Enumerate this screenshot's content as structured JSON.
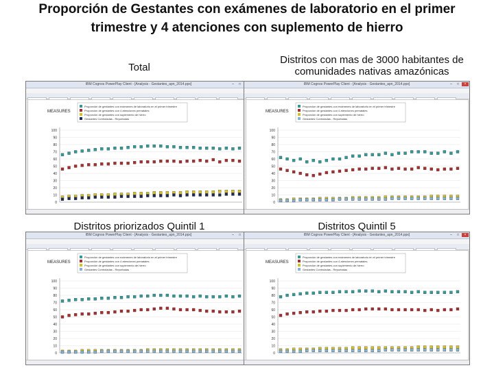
{
  "title": {
    "line1": "Proporción de Gestantes con exámenes de laboratorio en el primer",
    "line2": "trimestre y 4 atenciones con suplemento de hierro"
  },
  "panels": [
    {
      "caption_line1": "Total",
      "caption_line2": "",
      "window_title": "IBM Cognos PowerPlay Client - [Analysis - Gestantes_apn_2014.ppx]",
      "menu": [
        "Archivo",
        "Edición",
        "Ver",
        "Insertar",
        "Formato",
        "Explorar",
        "Herramientas",
        "Ventana",
        "Ayuda"
      ],
      "status": "Listo - Pantalla",
      "measure_label": "MEASURES",
      "y_ticks": [
        "100",
        "90",
        "80",
        "70",
        "60",
        "50",
        "40",
        "30",
        "20",
        "10",
        "0"
      ],
      "legend": [
        "Proporción de gestantes con exámenes de laboratorio en el primer trimestre",
        "Proporción de gestantes con 4 atenciones prenatales",
        "Proporción de gestantes con suplemento de hierro",
        "Gestantes Controladas - Reportadas"
      ],
      "colors": [
        "#2a9d9a",
        "#b02a2a",
        "#d8c21a",
        "#1f2a5a"
      ],
      "chart_data": {
        "type": "line",
        "ylim": [
          0,
          100
        ],
        "series": [
          {
            "name": "Proporción de gestantes con exámenes de laboratorio en el primer trimestre",
            "values": [
              66,
              68,
              70,
              71,
              72,
              73,
              74,
              74,
              75,
              75,
              76,
              77,
              77,
              78,
              78,
              78,
              77,
              77,
              76,
              76,
              76,
              75,
              75,
              75,
              74,
              75,
              74,
              75
            ]
          },
          {
            "name": "Proporción de gestantes con 4 atenciones prenatales",
            "values": [
              46,
              48,
              50,
              51,
              52,
              52,
              53,
              53,
              54,
              54,
              54,
              55,
              56,
              56,
              56,
              57,
              57,
              57,
              56,
              57,
              57,
              58,
              57,
              59,
              56,
              58,
              58,
              57
            ]
          },
          {
            "name": "Proporción de gestantes con suplemento de hierro",
            "values": [
              7,
              8,
              8,
              9,
              9,
              10,
              10,
              10,
              11,
              11,
              11,
              12,
              12,
              12,
              13,
              13,
              13,
              13,
              13,
              14,
              14,
              14,
              14,
              14,
              15,
              15,
              15,
              15
            ]
          },
          {
            "name": "Gestantes Controladas - Reportadas",
            "values": [
              4,
              5,
              5,
              6,
              6,
              7,
              7,
              7,
              7,
              8,
              8,
              8,
              8,
              9,
              9,
              9,
              9,
              10,
              9,
              10,
              10,
              10,
              10,
              10,
              10,
              11,
              11,
              11
            ]
          }
        ]
      }
    },
    {
      "caption_line1": "Distritos con mas de 3000 habitantes de",
      "caption_line2": "comunidades nativas amazónicas",
      "window_title": "IBM Cognos PowerPlay Client - [Analysis - Gestantes_apn_2014.ppx]",
      "menu": [
        "Archivo",
        "Edición",
        "Ver",
        "Insertar",
        "Formato",
        "Explorar",
        "Herramientas",
        "Ventana",
        "Ayuda"
      ],
      "status": "Listo - Pantalla",
      "measure_label": "MEASURES",
      "y_ticks": [
        "100",
        "90",
        "80",
        "70",
        "60",
        "50",
        "40",
        "30",
        "20",
        "10",
        "0"
      ],
      "legend": [
        "Proporción de gestantes con exámenes de laboratorio en el primer trimestre",
        "Proporción de gestantes con 4 atenciones prenatales",
        "Proporción de gestantes con suplemento de hierro",
        "Gestantes Controladas - Reportadas"
      ],
      "colors": [
        "#2a9d9a",
        "#b02a2a",
        "#d8c21a",
        "#7fb3d8"
      ],
      "chart_data": {
        "type": "line",
        "ylim": [
          0,
          100
        ],
        "series": [
          {
            "name": "Proporción de gestantes con exámenes de laboratorio en el primer trimestre",
            "values": [
              62,
              60,
              58,
              60,
              56,
              58,
              56,
              58,
              60,
              60,
              62,
              64,
              64,
              66,
              66,
              66,
              68,
              66,
              68,
              68,
              70,
              70,
              70,
              68,
              68,
              70,
              68,
              70
            ]
          },
          {
            "name": "Proporción de gestantes con 4 atenciones prenatales",
            "values": [
              46,
              44,
              42,
              40,
              38,
              37,
              39,
              41,
              42,
              43,
              44,
              45,
              46,
              46,
              47,
              47,
              48,
              46,
              47,
              46,
              46,
              48,
              47,
              46,
              45,
              46,
              46,
              47
            ]
          },
          {
            "name": "Proporción de gestantes con suplemento de hierro",
            "values": [
              3,
              3,
              4,
              4,
              4,
              4,
              5,
              5,
              5,
              5,
              5,
              6,
              6,
              6,
              6,
              6,
              7,
              7,
              7,
              7,
              7,
              7,
              7,
              8,
              8,
              8,
              8,
              8
            ]
          },
          {
            "name": "Gestantes Controladas - Reportadas",
            "values": [
              2,
              2,
              2,
              3,
              3,
              3,
              3,
              3,
              3,
              4,
              4,
              4,
              4,
              4,
              4,
              4,
              4,
              5,
              5,
              5,
              5,
              5,
              5,
              5,
              5,
              5,
              5,
              5
            ]
          }
        ]
      }
    },
    {
      "caption_line1": "Distritos priorizados Quintil 1",
      "caption_line2": "",
      "window_title": "IBM Cognos PowerPlay Client - [Analysis - Gestantes_apn_2014.ppx]",
      "menu": [
        "Archivo",
        "Edición",
        "Ver",
        "Insertar",
        "Formato",
        "Explorar",
        "Herramientas",
        "Ventana",
        "Ayuda"
      ],
      "status": "Listo - Pantalla",
      "measure_label": "MEASURES",
      "y_ticks": [
        "100",
        "90",
        "80",
        "70",
        "60",
        "50",
        "40",
        "30",
        "20",
        "10",
        "0"
      ],
      "legend": [
        "Proporción de gestantes con exámenes de laboratorio en el primer trimestre",
        "Proporción de gestantes con 4 atenciones prenatales",
        "Proporción de gestantes con suplemento de hierro",
        "Gestantes Controladas - Reportadas"
      ],
      "colors": [
        "#2a9d9a",
        "#b02a2a",
        "#d8c21a",
        "#7fb3d8"
      ],
      "chart_data": {
        "type": "line",
        "ylim": [
          0,
          100
        ],
        "series": [
          {
            "name": "Proporción de gestantes con exámenes de laboratorio en el primer trimestre",
            "values": [
              72,
              73,
              74,
              74,
              75,
              75,
              76,
              76,
              77,
              77,
              78,
              78,
              79,
              79,
              80,
              80,
              80,
              79,
              79,
              79,
              78,
              79,
              78,
              78,
              78,
              79,
              78,
              79
            ]
          },
          {
            "name": "Proporción de gestantes con 4 atenciones prenatales",
            "values": [
              50,
              52,
              53,
              54,
              54,
              55,
              56,
              56,
              57,
              58,
              58,
              59,
              60,
              60,
              61,
              62,
              62,
              61,
              60,
              60,
              60,
              59,
              58,
              58,
              57,
              57,
              57,
              58
            ]
          },
          {
            "name": "Proporción de gestantes con suplemento de hierro",
            "values": [
              2,
              2,
              2,
              3,
              3,
              3,
              3,
              3,
              3,
              3,
              3,
              3,
              3,
              4,
              4,
              4,
              4,
              4,
              4,
              4,
              4,
              4,
              4,
              4,
              4,
              4,
              4,
              4
            ]
          },
          {
            "name": "Gestantes Controladas - Reportadas",
            "values": [
              1,
              1,
              1,
              1,
              1,
              1,
              2,
              2,
              2,
              2,
              2,
              2,
              2,
              2,
              2,
              2,
              2,
              2,
              2,
              2,
              2,
              2,
              2,
              2,
              2,
              2,
              2,
              2
            ]
          }
        ]
      }
    },
    {
      "caption_line1": "Distritos Quintil 5",
      "caption_line2": "",
      "window_title": "IBM Cognos PowerPlay Client - [Analysis - Gestantes_apn_2014.ppx]",
      "menu": [
        "Archivo",
        "Edición",
        "Ver",
        "Insertar",
        "Formato",
        "Explorar",
        "Herramientas",
        "Ventana",
        "Ayuda"
      ],
      "status": "Listo - Pantalla",
      "measure_label": "MEASURES",
      "y_ticks": [
        "100",
        "90",
        "80",
        "70",
        "60",
        "50",
        "40",
        "30",
        "20",
        "10",
        "0"
      ],
      "legend": [
        "Proporción de gestantes con exámenes de laboratorio en el primer trimestre",
        "Proporción de gestantes con 4 atenciones prenatales",
        "Proporción de gestantes con suplemento de hierro",
        "Gestantes Controladas - Reportadas"
      ],
      "colors": [
        "#2a9d9a",
        "#b02a2a",
        "#d8c21a",
        "#7fb3d8"
      ],
      "chart_data": {
        "type": "line",
        "ylim": [
          0,
          100
        ],
        "series": [
          {
            "name": "Proporción de gestantes con exámenes de laboratorio en el primer trimestre",
            "values": [
              78,
              80,
              81,
              82,
              83,
              83,
              84,
              84,
              84,
              85,
              85,
              85,
              86,
              86,
              86,
              85,
              86,
              85,
              85,
              85,
              84,
              85,
              84,
              84,
              84,
              84,
              84,
              85
            ]
          },
          {
            "name": "Proporción de gestantes con 4 atenciones prenatales",
            "values": [
              52,
              54,
              55,
              56,
              57,
              57,
              58,
              58,
              59,
              59,
              59,
              60,
              60,
              61,
              61,
              61,
              61,
              60,
              60,
              60,
              60,
              60,
              59,
              60,
              59,
              60,
              60,
              61
            ]
          },
          {
            "name": "Proporción de gestantes con suplemento de hierro",
            "values": [
              4,
              4,
              5,
              5,
              5,
              5,
              6,
              6,
              6,
              6,
              6,
              7,
              7,
              7,
              7,
              7,
              7,
              7,
              7,
              7,
              7,
              8,
              8,
              8,
              8,
              8,
              8,
              8
            ]
          },
          {
            "name": "Gestantes Controladas - Reportadas",
            "values": [
              2,
              2,
              2,
              2,
              3,
              3,
              3,
              3,
              3,
              3,
              3,
              3,
              3,
              3,
              3,
              3,
              4,
              4,
              4,
              4,
              4,
              4,
              4,
              4,
              4,
              4,
              4,
              4
            ]
          }
        ]
      }
    }
  ]
}
